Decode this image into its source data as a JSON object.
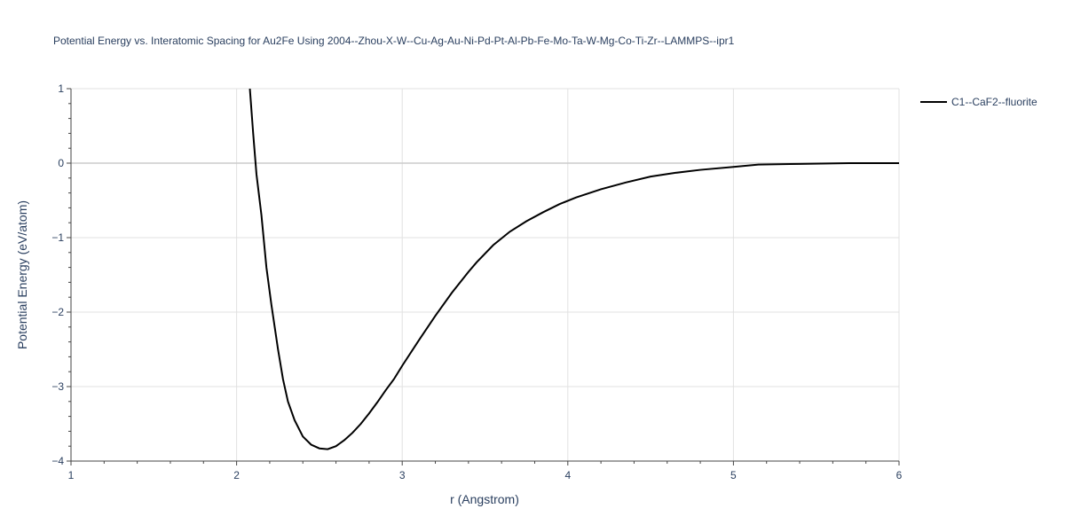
{
  "chart_data": {
    "type": "line",
    "title": "Potential Energy vs. Interatomic Spacing for Au2Fe Using 2004--Zhou-X-W--Cu-Ag-Au-Ni-Pd-Pt-Al-Pb-Fe-Mo-Ta-W-Mg-Co-Ti-Zr--LAMMPS--ipr1",
    "xlabel": "r (Angstrom)",
    "ylabel": "Potential Energy (eV/atom)",
    "xlim": [
      1,
      6
    ],
    "ylim": [
      -4,
      1
    ],
    "x_ticks": [
      1,
      2,
      3,
      4,
      5,
      6
    ],
    "x_tick_labels": [
      "1",
      "2",
      "3",
      "4",
      "5",
      "6"
    ],
    "y_ticks": [
      1,
      0,
      -1,
      -2,
      -3,
      -4
    ],
    "y_tick_labels": [
      "1",
      "0",
      "−1",
      "−2",
      "−3",
      "−4"
    ],
    "grid": true,
    "legend_position": "top-right",
    "series": [
      {
        "name": "C1--CaF2--fluorite",
        "color": "#000000",
        "x": [
          2.08,
          2.1,
          2.12,
          2.15,
          2.18,
          2.21,
          2.25,
          2.28,
          2.31,
          2.35,
          2.4,
          2.45,
          2.5,
          2.55,
          2.6,
          2.65,
          2.7,
          2.75,
          2.8,
          2.85,
          2.9,
          2.95,
          3.0,
          3.1,
          3.2,
          3.3,
          3.35,
          3.4,
          3.45,
          3.55,
          3.65,
          3.75,
          3.85,
          3.95,
          4.05,
          4.2,
          4.35,
          4.5,
          4.65,
          4.8,
          5.0,
          5.15,
          5.4,
          5.7,
          6.0
        ],
        "y": [
          1.0,
          0.4,
          -0.15,
          -0.7,
          -1.4,
          -1.9,
          -2.5,
          -2.9,
          -3.2,
          -3.45,
          -3.67,
          -3.78,
          -3.83,
          -3.84,
          -3.8,
          -3.72,
          -3.62,
          -3.5,
          -3.36,
          -3.21,
          -3.05,
          -2.9,
          -2.72,
          -2.38,
          -2.05,
          -1.74,
          -1.6,
          -1.46,
          -1.33,
          -1.1,
          -0.92,
          -0.78,
          -0.66,
          -0.55,
          -0.46,
          -0.35,
          -0.26,
          -0.18,
          -0.13,
          -0.09,
          -0.05,
          -0.02,
          -0.01,
          0.0,
          0.0
        ]
      }
    ]
  }
}
